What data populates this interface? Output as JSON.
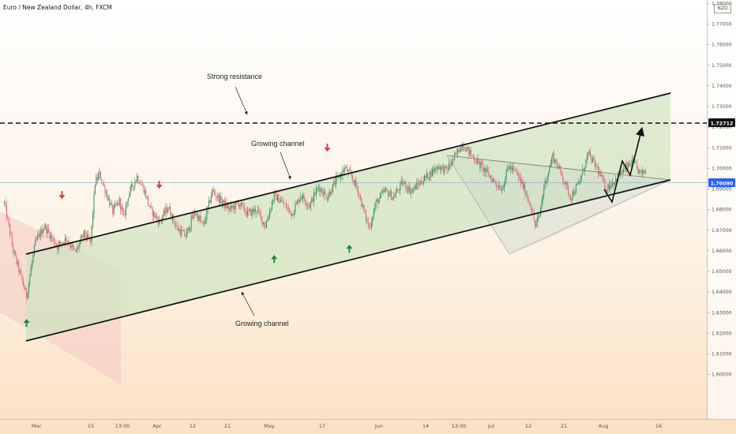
{
  "header": {
    "title": "Euro / New Zealand Dollar, 4h, FXCM",
    "currency_badge": "NZD"
  },
  "chart_data": {
    "type": "candlestick",
    "title": "Euro / New Zealand Dollar, 4h, FXCM",
    "y_axis": {
      "ticks": [
        "1.78000",
        "1.77000",
        "1.76000",
        "1.75000",
        "1.74000",
        "1.73000",
        "1.72000",
        "1.71000",
        "1.70000",
        "1.69000",
        "1.68000",
        "1.67000",
        "1.66000",
        "1.65000",
        "1.64000",
        "1.63000",
        "1.62000",
        "1.61000",
        "1.60000"
      ],
      "tick_values": [
        1.78,
        1.77,
        1.76,
        1.75,
        1.74,
        1.73,
        1.72,
        1.71,
        1.7,
        1.69,
        1.68,
        1.67,
        1.66,
        1.65,
        1.64,
        1.63,
        1.62,
        1.61,
        1.6
      ],
      "ylim": [
        1.597,
        1.782
      ]
    },
    "x_axis": {
      "ticks": [
        "Mar",
        "15",
        "13:00",
        "Apr",
        "12",
        "21",
        "May",
        "17",
        "Jun",
        "14",
        "13:00",
        "Jul",
        "12",
        "21",
        "Aug",
        "16"
      ]
    },
    "price_labels": [
      {
        "value": 1.72712,
        "text": "1.72712"
      },
      {
        "value": 1.7009,
        "text": "1.70090"
      }
    ],
    "price_path": [
      [
        0,
        1.683
      ],
      [
        2,
        1.66
      ],
      [
        5,
        1.638
      ],
      [
        7,
        1.664
      ],
      [
        9,
        1.672
      ],
      [
        12,
        1.662
      ],
      [
        14,
        1.666
      ],
      [
        16,
        1.659
      ],
      [
        18,
        1.668
      ],
      [
        19.5,
        1.664
      ],
      [
        20.5,
        1.693
      ],
      [
        21.5,
        1.697
      ],
      [
        23,
        1.688
      ],
      [
        24.5,
        1.679
      ],
      [
        26,
        1.684
      ],
      [
        27,
        1.676
      ],
      [
        28,
        1.687
      ],
      [
        30,
        1.696
      ],
      [
        31.5,
        1.69
      ],
      [
        33,
        1.68
      ],
      [
        35,
        1.674
      ],
      [
        37,
        1.681
      ],
      [
        39,
        1.671
      ],
      [
        41,
        1.667
      ],
      [
        43,
        1.679
      ],
      [
        45,
        1.672
      ],
      [
        47,
        1.689
      ],
      [
        49,
        1.684
      ],
      [
        51,
        1.68
      ],
      [
        53,
        1.683
      ],
      [
        55,
        1.678
      ],
      [
        57,
        1.68
      ],
      [
        59,
        1.672
      ],
      [
        61,
        1.687
      ],
      [
        63,
        1.683
      ],
      [
        65,
        1.678
      ],
      [
        67,
        1.687
      ],
      [
        69,
        1.682
      ],
      [
        71,
        1.691
      ],
      [
        73,
        1.686
      ],
      [
        75,
        1.694
      ],
      [
        77,
        1.7
      ],
      [
        78.5,
        1.696
      ],
      [
        80,
        1.689
      ],
      [
        81,
        1.681
      ],
      [
        82.5,
        1.671
      ],
      [
        84,
        1.683
      ],
      [
        86,
        1.689
      ],
      [
        88,
        1.686
      ],
      [
        90,
        1.693
      ],
      [
        92,
        1.689
      ],
      [
        94,
        1.693
      ],
      [
        96,
        1.697
      ],
      [
        98,
        1.701
      ],
      [
        100,
        1.699
      ],
      [
        102,
        1.706
      ],
      [
        103.5,
        1.712
      ],
      [
        105,
        1.708
      ],
      [
        107,
        1.703
      ],
      [
        109,
        1.698
      ],
      [
        111,
        1.693
      ],
      [
        112.5,
        1.69
      ],
      [
        114,
        1.701
      ],
      [
        116,
        1.697
      ],
      [
        117.5,
        1.69
      ],
      [
        119,
        1.682
      ],
      [
        120,
        1.672
      ],
      [
        121,
        1.677
      ],
      [
        122,
        1.691
      ],
      [
        124,
        1.706
      ],
      [
        126,
        1.697
      ],
      [
        128,
        1.686
      ],
      [
        130,
        1.693
      ],
      [
        132,
        1.707
      ],
      [
        134,
        1.7
      ],
      [
        136,
        1.69
      ],
      [
        138,
        1.694
      ],
      [
        140,
        1.699
      ],
      [
        142,
        1.703
      ],
      [
        144,
        1.697
      ],
      [
        145,
        1.699
      ]
    ],
    "channels": [
      {
        "name": "Growing channel (upper)",
        "start": [
          5,
          1.669
        ],
        "end": [
          151,
          1.739
        ]
      },
      {
        "name": "Growing channel (lower)",
        "start": [
          5,
          1.633
        ],
        "end": [
          151,
          1.701
        ]
      }
    ],
    "strong_resistance": 1.72712,
    "projection": [
      [
        145,
        1.703
      ],
      [
        148,
        1.701
      ],
      [
        151,
        1.71
      ],
      [
        154,
        1.703
      ],
      [
        158,
        1.726
      ]
    ],
    "arrows_up": [
      [
        5,
        1.625
      ],
      [
        61,
        1.656
      ],
      [
        78,
        1.661
      ]
    ],
    "arrows_down": [
      [
        13,
        1.687
      ],
      [
        35,
        1.692
      ],
      [
        73,
        1.71
      ]
    ],
    "annotations": [
      {
        "text": "Strong resistance"
      },
      {
        "text": "Growing channel"
      },
      {
        "text": "Growing channel"
      }
    ],
    "colors": {
      "up_candle": "#3d8f5f",
      "down_candle": "#e06c72",
      "channel_fill": "#dce9cf",
      "resistance": "#111111",
      "arrow_up": "#138a3a",
      "arrow_down": "#e03b3b"
    }
  }
}
